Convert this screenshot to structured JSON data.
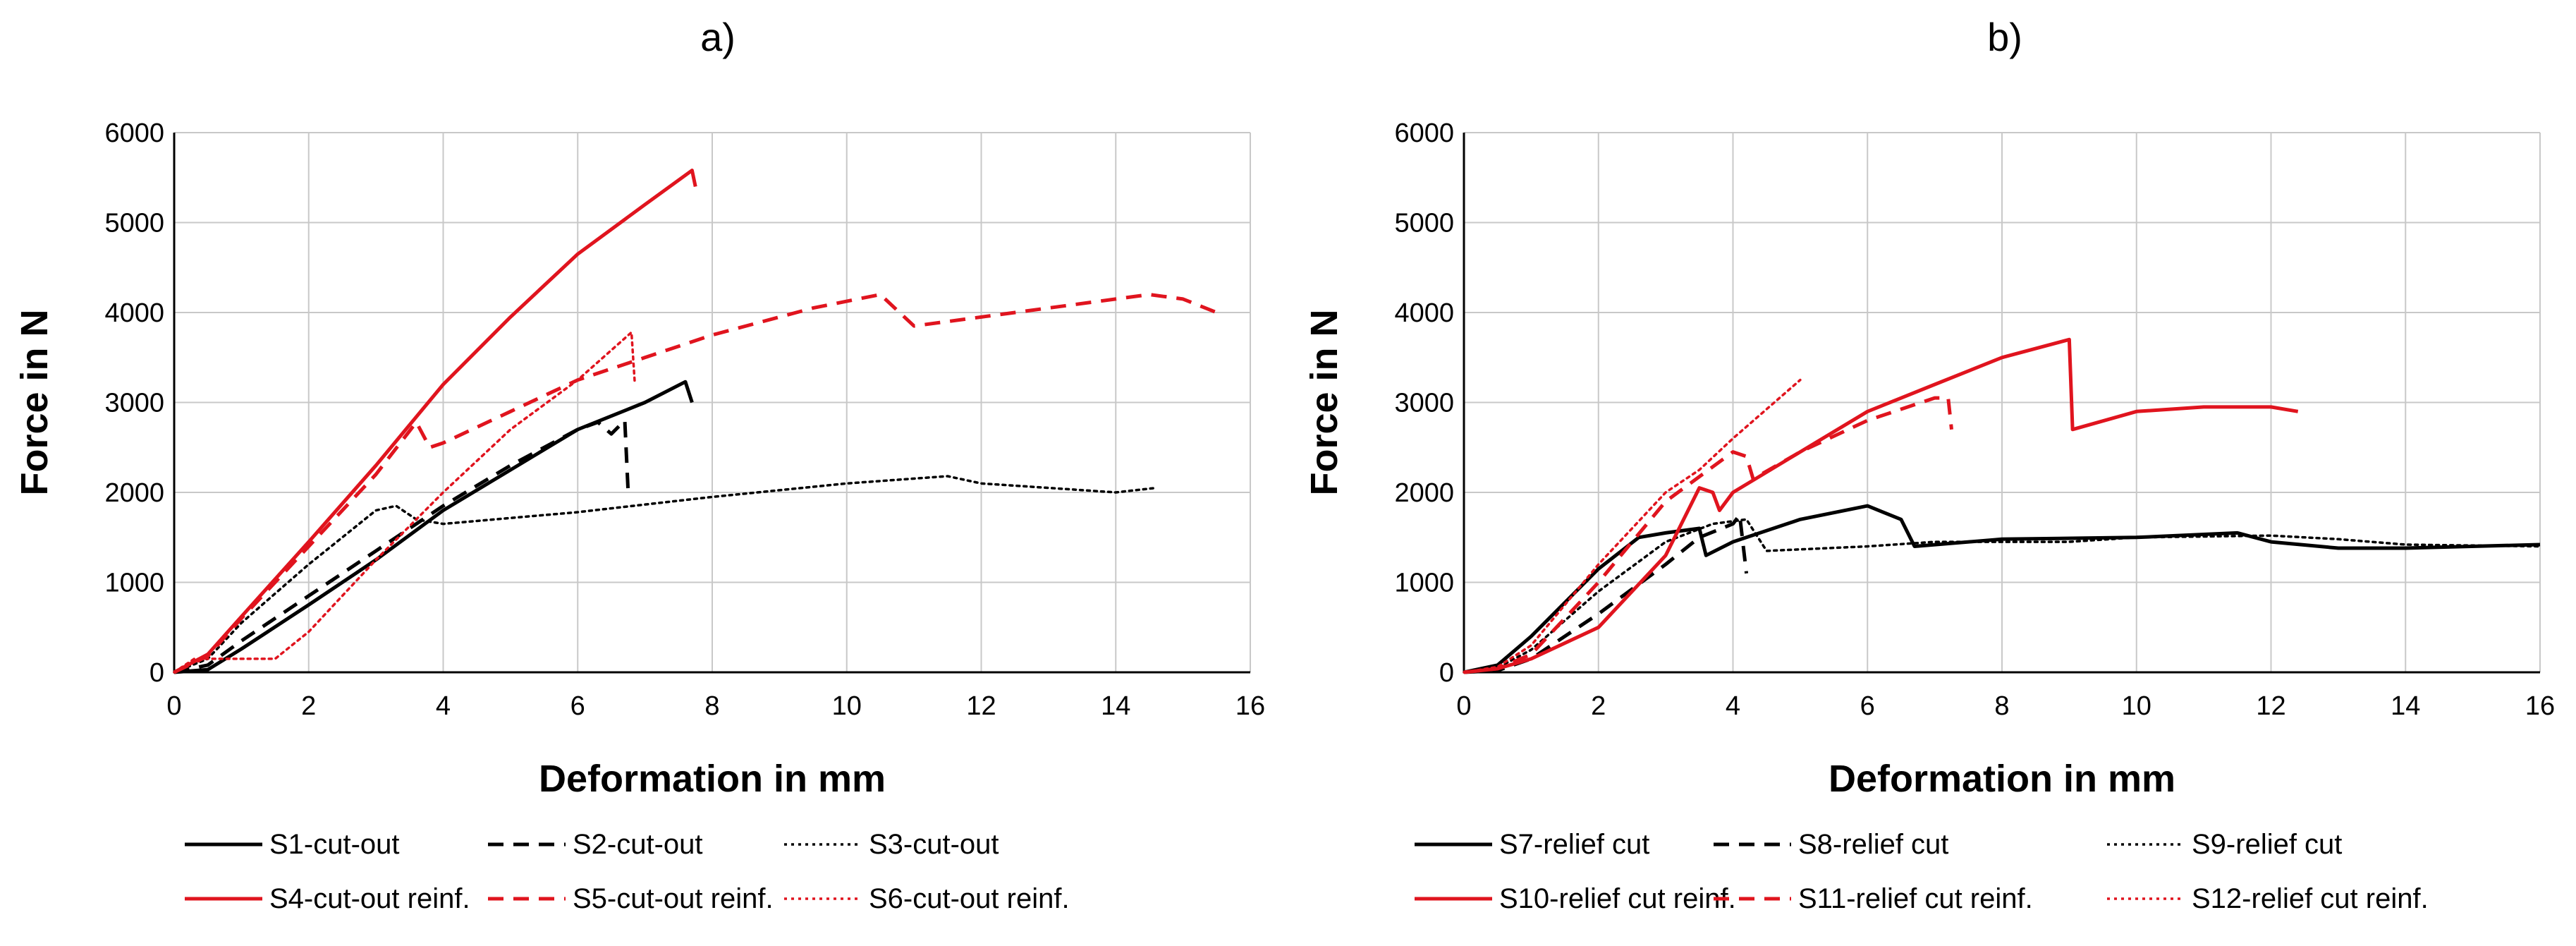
{
  "chart_data": [
    {
      "panel": "a)",
      "type": "line",
      "xlabel": "Deformation in mm",
      "ylabel": "Force in N",
      "xlim": [
        0,
        16
      ],
      "ylim": [
        0,
        6000
      ],
      "x_ticks": [
        0,
        2,
        4,
        6,
        8,
        10,
        12,
        14,
        16
      ],
      "y_ticks": [
        0,
        1000,
        2000,
        3000,
        4000,
        5000,
        6000
      ],
      "grid": true,
      "legend_position": "bottom",
      "series": [
        {
          "name": "S1-cut-out",
          "color": "#000000",
          "style": "solid",
          "points": [
            [
              0,
              0
            ],
            [
              0.5,
              30
            ],
            [
              1,
              260
            ],
            [
              2,
              750
            ],
            [
              3,
              1250
            ],
            [
              4,
              1800
            ],
            [
              5,
              2250
            ],
            [
              6,
              2700
            ],
            [
              7,
              3000
            ],
            [
              7.6,
              3230
            ],
            [
              7.7,
              3000
            ]
          ]
        },
        {
          "name": "S2-cut-out",
          "color": "#000000",
          "style": "dashed",
          "points": [
            [
              0,
              0
            ],
            [
              0.5,
              80
            ],
            [
              1,
              350
            ],
            [
              2,
              850
            ],
            [
              3,
              1350
            ],
            [
              4,
              1850
            ],
            [
              5,
              2300
            ],
            [
              6,
              2700
            ],
            [
              6.3,
              2780
            ],
            [
              6.5,
              2650
            ],
            [
              6.7,
              2800
            ],
            [
              6.75,
              2000
            ]
          ]
        },
        {
          "name": "S3-cut-out",
          "color": "#000000",
          "style": "dotted",
          "points": [
            [
              0,
              0
            ],
            [
              0.5,
              150
            ],
            [
              1,
              550
            ],
            [
              2,
              1200
            ],
            [
              3,
              1800
            ],
            [
              3.3,
              1850
            ],
            [
              3.6,
              1700
            ],
            [
              4,
              1650
            ],
            [
              6,
              1780
            ],
            [
              8,
              1950
            ],
            [
              10,
              2100
            ],
            [
              11.5,
              2180
            ],
            [
              12,
              2100
            ],
            [
              13,
              2050
            ],
            [
              14,
              2000
            ],
            [
              14.6,
              2050
            ]
          ]
        },
        {
          "name": "S4-cut-out reinf.",
          "color": "#e0141e",
          "style": "solid",
          "points": [
            [
              0,
              0
            ],
            [
              0.5,
              200
            ],
            [
              1,
              620
            ],
            [
              2,
              1450
            ],
            [
              3,
              2300
            ],
            [
              4,
              3200
            ],
            [
              5,
              3950
            ],
            [
              6,
              4650
            ],
            [
              7,
              5200
            ],
            [
              7.7,
              5580
            ],
            [
              7.75,
              5400
            ]
          ]
        },
        {
          "name": "S5-cut-out reinf.",
          "color": "#e0141e",
          "style": "dashed",
          "points": [
            [
              0,
              0
            ],
            [
              0.5,
              180
            ],
            [
              1,
              600
            ],
            [
              2,
              1400
            ],
            [
              3,
              2200
            ],
            [
              3.6,
              2780
            ],
            [
              3.8,
              2500
            ],
            [
              4,
              2550
            ],
            [
              5,
              2900
            ],
            [
              6,
              3250
            ],
            [
              7,
              3500
            ],
            [
              8,
              3750
            ],
            [
              9.5,
              4050
            ],
            [
              10.5,
              4200
            ],
            [
              11,
              3850
            ],
            [
              12,
              3950
            ],
            [
              13,
              4050
            ],
            [
              14.5,
              4200
            ],
            [
              15,
              4150
            ],
            [
              15.5,
              4000
            ]
          ]
        },
        {
          "name": "S6-cut-out reinf.",
          "color": "#e0141e",
          "style": "dotted",
          "points": [
            [
              0,
              0
            ],
            [
              0.3,
              150
            ],
            [
              1.5,
              150
            ],
            [
              2,
              450
            ],
            [
              3,
              1250
            ],
            [
              4,
              2000
            ],
            [
              5,
              2700
            ],
            [
              6,
              3250
            ],
            [
              6.8,
              3780
            ],
            [
              6.85,
              3200
            ]
          ]
        }
      ],
      "legend": [
        "S1-cut-out",
        "S2-cut-out",
        "S3-cut-out",
        "S4-cut-out reinf.",
        "S5-cut-out reinf.",
        "S6-cut-out reinf."
      ]
    },
    {
      "panel": "b)",
      "type": "line",
      "xlabel": "Deformation in mm",
      "ylabel": "Force in N",
      "xlim": [
        0,
        16
      ],
      "ylim": [
        0,
        6000
      ],
      "x_ticks": [
        0,
        2,
        4,
        6,
        8,
        10,
        12,
        14,
        16
      ],
      "y_ticks": [
        0,
        1000,
        2000,
        3000,
        4000,
        5000,
        6000
      ],
      "grid": true,
      "legend_position": "bottom",
      "series": [
        {
          "name": "S7-relief cut",
          "color": "#000000",
          "style": "solid",
          "points": [
            [
              0,
              0
            ],
            [
              0.5,
              80
            ],
            [
              1,
              400
            ],
            [
              2,
              1150
            ],
            [
              2.6,
              1500
            ],
            [
              3,
              1550
            ],
            [
              3.5,
              1600
            ],
            [
              3.6,
              1300
            ],
            [
              4,
              1450
            ],
            [
              5,
              1700
            ],
            [
              6,
              1850
            ],
            [
              6.5,
              1700
            ],
            [
              6.7,
              1400
            ],
            [
              8,
              1480
            ],
            [
              10,
              1500
            ],
            [
              11.5,
              1550
            ],
            [
              12,
              1450
            ],
            [
              13,
              1380
            ],
            [
              14,
              1380
            ],
            [
              16,
              1420
            ]
          ]
        },
        {
          "name": "S8-relief cut",
          "color": "#000000",
          "style": "dashed",
          "points": [
            [
              0,
              0
            ],
            [
              0.5,
              20
            ],
            [
              1,
              150
            ],
            [
              2,
              650
            ],
            [
              3,
              1200
            ],
            [
              3.5,
              1500
            ],
            [
              4,
              1650
            ],
            [
              4.1,
              1750
            ],
            [
              4.2,
              1100
            ]
          ]
        },
        {
          "name": "S9-relief cut",
          "color": "#000000",
          "style": "dotted",
          "points": [
            [
              0,
              0
            ],
            [
              0.5,
              50
            ],
            [
              1,
              250
            ],
            [
              2,
              900
            ],
            [
              3,
              1450
            ],
            [
              3.7,
              1650
            ],
            [
              4.2,
              1700
            ],
            [
              4.5,
              1350
            ],
            [
              6,
              1400
            ],
            [
              7,
              1450
            ],
            [
              9,
              1450
            ],
            [
              10,
              1500
            ],
            [
              12,
              1520
            ],
            [
              13,
              1480
            ],
            [
              14,
              1420
            ],
            [
              16,
              1400
            ]
          ]
        },
        {
          "name": "S10-relief cut reinf.",
          "color": "#e0141e",
          "style": "solid",
          "points": [
            [
              0,
              0
            ],
            [
              0.5,
              40
            ],
            [
              1,
              150
            ],
            [
              2,
              500
            ],
            [
              3,
              1300
            ],
            [
              3.5,
              2050
            ],
            [
              3.7,
              2000
            ],
            [
              3.8,
              1800
            ],
            [
              4,
              2000
            ],
            [
              5,
              2450
            ],
            [
              6,
              2900
            ],
            [
              7,
              3200
            ],
            [
              8,
              3500
            ],
            [
              9,
              3700
            ],
            [
              9.05,
              2700
            ],
            [
              10,
              2900
            ],
            [
              11,
              2950
            ],
            [
              12,
              2950
            ],
            [
              12.4,
              2900
            ]
          ]
        },
        {
          "name": "S11-relief cut reinf.",
          "color": "#e0141e",
          "style": "dashed",
          "points": [
            [
              0,
              0
            ],
            [
              0.5,
              40
            ],
            [
              1,
              200
            ],
            [
              2,
              1000
            ],
            [
              3,
              1900
            ],
            [
              4,
              2450
            ],
            [
              4.2,
              2400
            ],
            [
              4.3,
              2150
            ],
            [
              5,
              2450
            ],
            [
              6,
              2800
            ],
            [
              7,
              3050
            ],
            [
              7.2,
              3050
            ],
            [
              7.25,
              2700
            ]
          ]
        },
        {
          "name": "S12-relief cut reinf.",
          "color": "#e0141e",
          "style": "dotted",
          "points": [
            [
              0,
              0
            ],
            [
              0.5,
              60
            ],
            [
              1,
              300
            ],
            [
              2,
              1200
            ],
            [
              3,
              2000
            ],
            [
              3.5,
              2250
            ],
            [
              4,
              2600
            ],
            [
              5,
              3250
            ]
          ]
        }
      ],
      "legend": [
        "S7-relief cut",
        "S8-relief cut",
        "S9-relief cut",
        "S10-relief cut reinf.",
        "S11-relief cut reinf.",
        "S12-relief cut reinf."
      ]
    }
  ]
}
